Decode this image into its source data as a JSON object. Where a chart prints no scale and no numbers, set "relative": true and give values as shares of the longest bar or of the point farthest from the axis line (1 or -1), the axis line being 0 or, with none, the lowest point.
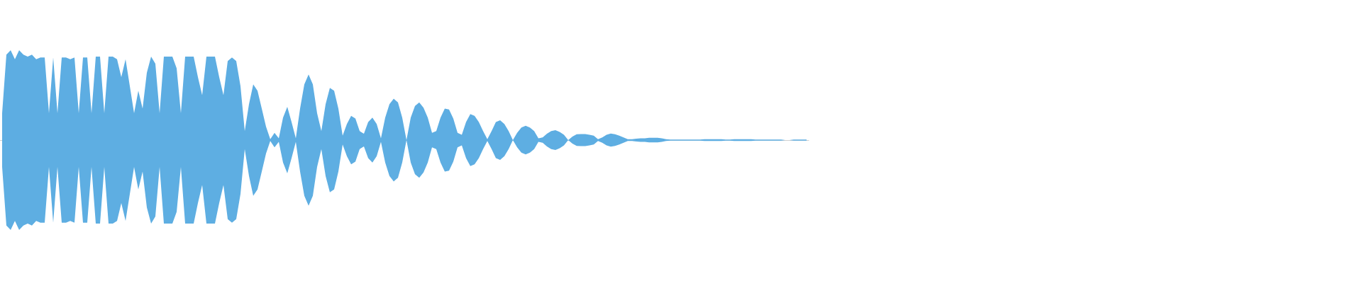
{
  "chart_data": {
    "type": "area",
    "relative": true,
    "categories": [
      null,
      null,
      null,
      null,
      null,
      null,
      null,
      null,
      null,
      null,
      null,
      null,
      null,
      null,
      null,
      null,
      null,
      null,
      null,
      null,
      null,
      null,
      null,
      null,
      null,
      null,
      null,
      null,
      null,
      null,
      null,
      null,
      null,
      null,
      null,
      null,
      null,
      null,
      null,
      null,
      null,
      null,
      null,
      null,
      null,
      null,
      null,
      null,
      null,
      null,
      null,
      null,
      null,
      null,
      null,
      null,
      null,
      null,
      null,
      null,
      null,
      null,
      null,
      null,
      null,
      null,
      null,
      null,
      null,
      null,
      null,
      null,
      null,
      null,
      null,
      null,
      null,
      null,
      null,
      null,
      null,
      null,
      null,
      null,
      null,
      null,
      null,
      null,
      null,
      null,
      null,
      null,
      null,
      null,
      null,
      null,
      null,
      null,
      null,
      null,
      null,
      null,
      null,
      null,
      null,
      null,
      null,
      null,
      null,
      null,
      null,
      null,
      null,
      null,
      null,
      null,
      null,
      null,
      null,
      null,
      null,
      null,
      null,
      null,
      null,
      null,
      null,
      null,
      null,
      null,
      null,
      null,
      null,
      null,
      null,
      null,
      null,
      null,
      null,
      null,
      null,
      null,
      null,
      null,
      null,
      null,
      null,
      null,
      null,
      null,
      null,
      null,
      null,
      null,
      null,
      null,
      null,
      null,
      null,
      null,
      null,
      null,
      null,
      null,
      null,
      null,
      null,
      null,
      null,
      null,
      null,
      null,
      null,
      null,
      null,
      null,
      null,
      null,
      null,
      null,
      null,
      null,
      null,
      null,
      null,
      null,
      null,
      null,
      null,
      null
    ],
    "series": [
      {
        "color": "#5dade2",
        "values": [
          0.3,
          0.95,
          1.0,
          0.9,
          1.0,
          0.95,
          0.93,
          0.95,
          0.9,
          0.92,
          0.92,
          0.3,
          0.92,
          0.3,
          0.92,
          0.92,
          0.9,
          0.92,
          0.3,
          0.92,
          0.92,
          0.3,
          0.93,
          0.93,
          0.3,
          0.93,
          0.93,
          0.9,
          0.7,
          0.9,
          0.6,
          0.3,
          0.55,
          0.35,
          0.75,
          0.93,
          0.85,
          0.3,
          0.93,
          0.93,
          0.93,
          0.8,
          0.3,
          0.93,
          0.93,
          0.93,
          0.7,
          0.5,
          0.93,
          0.93,
          0.93,
          0.7,
          0.5,
          0.88,
          0.92,
          0.88,
          0.6,
          0.1,
          0.4,
          0.62,
          0.55,
          0.35,
          0.15,
          0.01,
          0.08,
          0.02,
          0.25,
          0.37,
          0.2,
          0.02,
          0.35,
          0.62,
          0.73,
          0.62,
          0.3,
          0.1,
          0.4,
          0.58,
          0.55,
          0.35,
          0.05,
          0.18,
          0.27,
          0.24,
          0.1,
          0.07,
          0.2,
          0.25,
          0.18,
          0.02,
          0.25,
          0.4,
          0.46,
          0.42,
          0.25,
          0,
          0.25,
          0.38,
          0.42,
          0.36,
          0.25,
          0.08,
          0.1,
          0.25,
          0.35,
          0.34,
          0.24,
          0.08,
          0.06,
          0.2,
          0.29,
          0.27,
          0.2,
          0.1,
          0.01,
          0.1,
          0.2,
          0.22,
          0.18,
          0.1,
          0,
          0.08,
          0.14,
          0.16,
          0.14,
          0.1,
          0.02,
          0.03,
          0.07,
          0.1,
          0.11,
          0.09,
          0.06,
          0,
          0.04,
          0.065,
          0.066,
          0.066,
          0.06,
          0.05,
          0.01,
          0.03,
          0.06,
          0.073,
          0.065,
          0.05,
          0.03,
          0.01,
          0.01,
          0.015,
          0.02,
          0.02,
          0.025,
          0.025,
          0.025,
          0.02,
          0.01,
          0.005,
          0.005,
          0.005,
          0.005,
          0.005,
          0.005,
          0.005,
          0.005,
          0.01,
          0.01,
          0.01,
          0.01,
          0.01,
          0.005,
          0.005,
          0.01,
          0.01,
          0.01,
          0.01,
          0.01,
          0.005,
          0.005,
          0.005,
          0.005,
          0.005,
          0.005,
          0.005,
          0,
          0,
          0.005,
          0.005,
          0.005,
          0.005
        ]
      },
      {
        "color": "#5eaee2",
        "values": [
          -0.3,
          -0.95,
          -1.0,
          -0.9,
          -1.0,
          -0.95,
          -0.93,
          -0.95,
          -0.9,
          -0.92,
          -0.92,
          -0.3,
          -0.92,
          -0.3,
          -0.92,
          -0.92,
          -0.9,
          -0.92,
          -0.3,
          -0.92,
          -0.92,
          -0.3,
          -0.93,
          -0.93,
          -0.3,
          -0.93,
          -0.93,
          -0.9,
          -0.7,
          -0.9,
          -0.6,
          -0.3,
          -0.55,
          -0.35,
          -0.75,
          -0.93,
          -0.85,
          -0.3,
          -0.93,
          -0.93,
          -0.93,
          -0.8,
          -0.3,
          -0.93,
          -0.93,
          -0.93,
          -0.7,
          -0.5,
          -0.93,
          -0.93,
          -0.93,
          -0.7,
          -0.5,
          -0.88,
          -0.92,
          -0.88,
          -0.6,
          -0.1,
          -0.4,
          -0.62,
          -0.55,
          -0.35,
          -0.15,
          -0.01,
          -0.08,
          -0.02,
          -0.25,
          -0.37,
          -0.2,
          -0.02,
          -0.35,
          -0.62,
          -0.73,
          -0.62,
          -0.3,
          -0.1,
          -0.4,
          -0.58,
          -0.55,
          -0.35,
          -0.05,
          -0.18,
          -0.27,
          -0.24,
          -0.1,
          -0.07,
          -0.2,
          -0.25,
          -0.18,
          -0.02,
          -0.25,
          -0.4,
          -0.46,
          -0.42,
          -0.25,
          0,
          -0.25,
          -0.38,
          -0.42,
          -0.36,
          -0.25,
          -0.08,
          -0.1,
          -0.25,
          -0.35,
          -0.34,
          -0.24,
          -0.08,
          -0.06,
          -0.2,
          -0.29,
          -0.27,
          -0.2,
          -0.1,
          -0.01,
          -0.1,
          -0.2,
          -0.22,
          -0.18,
          -0.1,
          0,
          -0.08,
          -0.14,
          -0.16,
          -0.14,
          -0.1,
          -0.02,
          -0.03,
          -0.07,
          -0.1,
          -0.11,
          -0.09,
          -0.06,
          0,
          -0.04,
          -0.065,
          -0.066,
          -0.066,
          -0.06,
          -0.05,
          -0.01,
          -0.03,
          -0.06,
          -0.073,
          -0.065,
          -0.05,
          -0.03,
          -0.01,
          -0.01,
          -0.015,
          -0.02,
          -0.02,
          -0.025,
          -0.025,
          -0.025,
          -0.02,
          -0.01,
          -0.005,
          -0.005,
          -0.005,
          -0.005,
          -0.005,
          -0.005,
          -0.005,
          -0.005,
          -0.01,
          -0.01,
          -0.01,
          -0.01,
          -0.01,
          -0.005,
          -0.005,
          -0.01,
          -0.01,
          -0.01,
          -0.01,
          -0.01,
          -0.005,
          -0.005,
          -0.005,
          -0.005,
          -0.005,
          -0.005,
          -0.005,
          0,
          0,
          -0.005,
          -0.005,
          -0.005,
          -0.005
        ]
      }
    ]
  }
}
